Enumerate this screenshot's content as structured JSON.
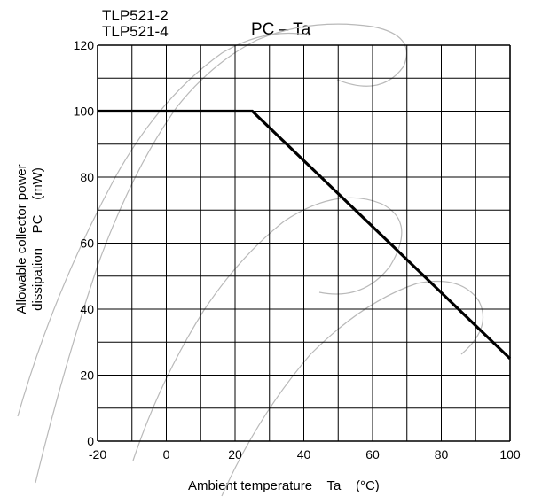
{
  "chart_data": {
    "type": "line",
    "part_numbers": [
      "TLP521-2",
      "TLP521-4"
    ],
    "title": "PC – Ta",
    "xlabel": "Ambient temperature    Ta    (°C)",
    "ylabel_lines": [
      "Allowable collector power",
      "dissipation    PC    (mW)"
    ],
    "xlim": [
      -20,
      100
    ],
    "ylim": [
      0,
      120
    ],
    "x_ticks": [
      -20,
      0,
      20,
      40,
      60,
      80,
      100
    ],
    "y_ticks": [
      0,
      20,
      40,
      60,
      80,
      100,
      120
    ],
    "grid": true,
    "x_grid_step": 10,
    "y_grid_step": 10,
    "series": [
      {
        "x": [
          -20,
          25,
          100
        ],
        "y": [
          100,
          100,
          25
        ]
      }
    ]
  }
}
